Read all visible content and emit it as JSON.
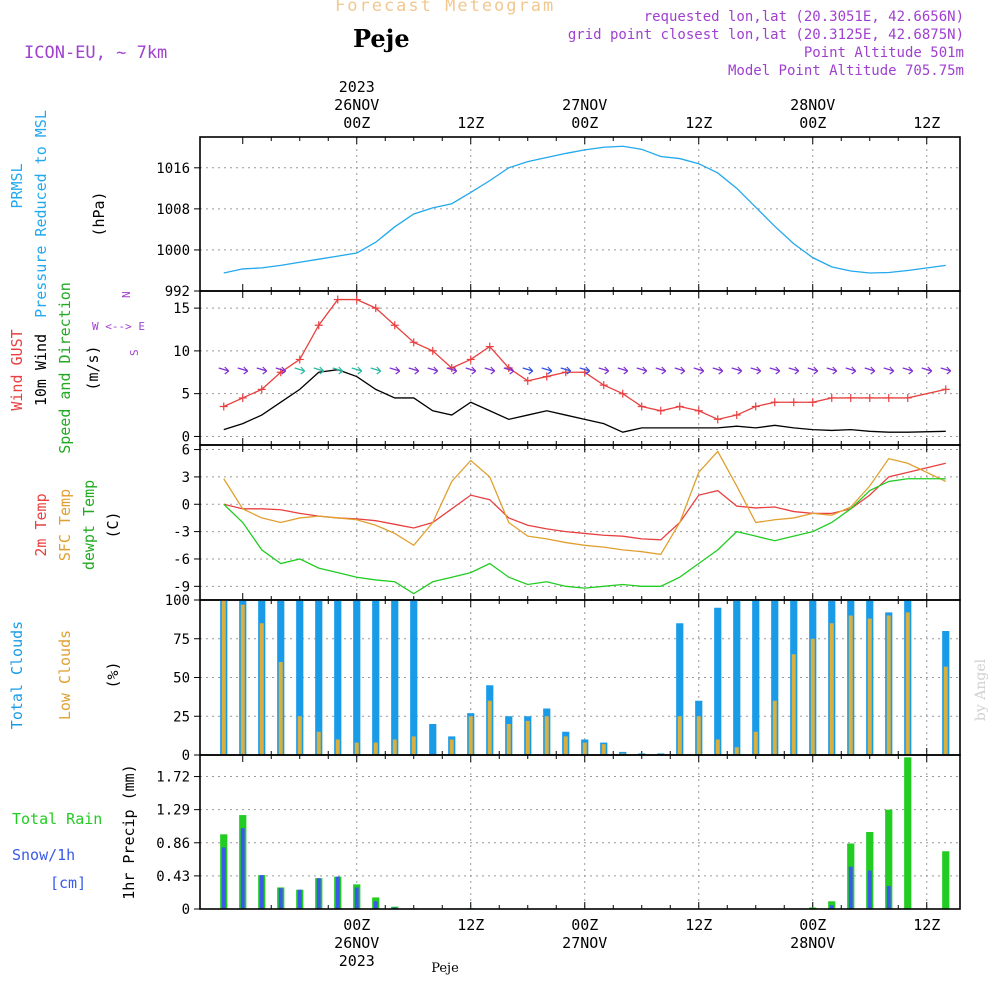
{
  "header": {
    "title": "Forecast Meteogram",
    "location": "Peje",
    "model": "ICON-EU, ~ 7km",
    "requested": "requested lon,lat (20.3051E, 42.6656N)",
    "gridpoint": "grid point closest lon,lat (20.3125E, 42.6875N)",
    "point_alt": "Point Altitude 501m",
    "model_alt": "Model Point Altitude 705.75m",
    "footer_location": "Peje",
    "watermark": "by Angel"
  },
  "colors": {
    "title": "#f0c890",
    "meta": "#a040d0",
    "pressure": "#22a8ee",
    "gust": "#e84040",
    "wind": "#000000",
    "t2m": "#e84040",
    "sfc": "#e0a030",
    "dew": "#22cc22",
    "cloud_total": "#1a9be8",
    "cloud_low": "#d8b040",
    "rain": "#22cc22",
    "snow": "#3a5ae8"
  },
  "chart_data": [
    {
      "id": "pressure",
      "type": "line",
      "ylabels": [
        "PRMSL",
        "Pressure Reduced to MSL",
        "(hPa)"
      ],
      "ylim": [
        992,
        1022
      ],
      "yticks": [
        992,
        1000,
        1008,
        1016
      ],
      "x_hours": [
        -14,
        -12,
        -10,
        -8,
        -6,
        -4,
        -2,
        0,
        2,
        4,
        6,
        8,
        10,
        12,
        14,
        16,
        18,
        20,
        22,
        24,
        26,
        28,
        30,
        32,
        34,
        36,
        38,
        40,
        42,
        44,
        46,
        48,
        50,
        52,
        54,
        56,
        58,
        62
      ],
      "series": [
        {
          "name": "PRMSL",
          "color": "#22a8ee",
          "values": [
            995.5,
            996.3,
            996.5,
            997.0,
            997.6,
            998.2,
            998.8,
            999.4,
            1001.5,
            1004.5,
            1007.0,
            1008.2,
            1009.0,
            1011.2,
            1013.5,
            1016.0,
            1017.2,
            1018.0,
            1018.8,
            1019.5,
            1020.0,
            1020.2,
            1019.6,
            1018.2,
            1017.8,
            1016.8,
            1015.0,
            1012.0,
            1008.3,
            1004.6,
            1001.2,
            998.5,
            996.7,
            995.9,
            995.5,
            995.6,
            996.0,
            997.0
          ]
        }
      ]
    },
    {
      "id": "wind",
      "type": "line",
      "ylabels": [
        "Wind GUST",
        "10m Wind",
        "Speed and Direction",
        "(m/s)"
      ],
      "compass": [
        "N",
        "W <--> E",
        "S"
      ],
      "ylim": [
        -1,
        17
      ],
      "yticks": [
        0,
        5,
        10,
        15
      ],
      "x_hours": [
        -14,
        -12,
        -10,
        -8,
        -6,
        -4,
        -2,
        0,
        2,
        4,
        6,
        8,
        10,
        12,
        14,
        16,
        18,
        20,
        22,
        24,
        26,
        28,
        30,
        32,
        34,
        36,
        38,
        40,
        42,
        44,
        46,
        48,
        50,
        52,
        54,
        56,
        58,
        62
      ],
      "series": [
        {
          "name": "Wind GUST",
          "color": "#e84040",
          "values": [
            3.5,
            4.5,
            5.5,
            7.5,
            9.0,
            13.0,
            16.0,
            16.0,
            15.0,
            13.0,
            11.0,
            10.0,
            8.0,
            9.0,
            10.5,
            8.0,
            6.5,
            7.0,
            7.5,
            7.5,
            6.0,
            5.0,
            3.5,
            3.0,
            3.5,
            3.0,
            2.0,
            2.5,
            3.5,
            4.0,
            4.0,
            4.0,
            4.5,
            4.5,
            4.5,
            4.5,
            4.5,
            5.5
          ]
        },
        {
          "name": "10m Wind",
          "color": "#000000",
          "values": [
            0.8,
            1.5,
            2.5,
            4.0,
            5.5,
            7.5,
            7.8,
            7.0,
            5.5,
            4.5,
            4.5,
            3.0,
            2.5,
            4.0,
            3.0,
            2.0,
            2.5,
            3.0,
            2.5,
            2.0,
            1.5,
            0.5,
            1.0,
            1.0,
            1.0,
            1.0,
            1.0,
            1.2,
            1.0,
            1.3,
            1.0,
            0.8,
            0.7,
            0.8,
            0.6,
            0.5,
            0.5,
            0.6
          ]
        }
      ]
    },
    {
      "id": "temperature",
      "type": "line",
      "ylabels": [
        "2m Temp",
        "SFC Temp",
        "dewpt Temp",
        "(C)"
      ],
      "ylim": [
        -10.5,
        6.5
      ],
      "yticks": [
        -9,
        -6,
        -3,
        0,
        3,
        6
      ],
      "x_hours": [
        -14,
        -12,
        -10,
        -8,
        -6,
        -4,
        -2,
        0,
        2,
        4,
        6,
        8,
        10,
        12,
        14,
        16,
        18,
        20,
        22,
        24,
        26,
        28,
        30,
        32,
        34,
        36,
        38,
        40,
        42,
        44,
        46,
        48,
        50,
        52,
        54,
        56,
        58,
        62
      ],
      "series": [
        {
          "name": "2m Temp",
          "color": "#e84040",
          "values": [
            0.0,
            -0.5,
            -0.5,
            -0.6,
            -1.0,
            -1.3,
            -1.5,
            -1.6,
            -1.8,
            -2.2,
            -2.6,
            -2.0,
            -0.5,
            1.0,
            0.5,
            -1.5,
            -2.3,
            -2.7,
            -3.0,
            -3.2,
            -3.4,
            -3.5,
            -3.8,
            -3.9,
            -2.0,
            1.0,
            1.5,
            -0.2,
            -0.4,
            -0.3,
            -0.8,
            -1.0,
            -1.0,
            -0.5,
            1.0,
            3.0,
            3.5,
            4.5
          ]
        },
        {
          "name": "SFC Temp",
          "color": "#e0a030",
          "values": [
            2.8,
            -0.5,
            -1.5,
            -2.0,
            -1.5,
            -1.3,
            -1.5,
            -1.7,
            -2.3,
            -3.2,
            -4.5,
            -2.0,
            2.5,
            4.8,
            3.0,
            -2.0,
            -3.5,
            -3.8,
            -4.2,
            -4.5,
            -4.7,
            -5.0,
            -5.2,
            -5.5,
            -2.0,
            3.5,
            5.8,
            2.0,
            -2.0,
            -1.7,
            -1.5,
            -1.0,
            -1.2,
            -0.3,
            2.0,
            5.0,
            4.5,
            2.5
          ]
        },
        {
          "name": "dewpt Temp",
          "color": "#22cc22",
          "values": [
            0.0,
            -2.0,
            -5.0,
            -6.5,
            -6.0,
            -7.0,
            -7.5,
            -8.0,
            -8.3,
            -8.5,
            -9.8,
            -8.5,
            -8.0,
            -7.5,
            -6.5,
            -8.0,
            -8.8,
            -8.5,
            -9.0,
            -9.2,
            -9.0,
            -8.8,
            -9.0,
            -9.0,
            -8.0,
            -6.5,
            -5.0,
            -3.0,
            -3.5,
            -4.0,
            -3.5,
            -3.0,
            -2.0,
            -0.5,
            1.5,
            2.5,
            2.8,
            2.8
          ]
        }
      ]
    },
    {
      "id": "clouds",
      "type": "bar",
      "ylabels": [
        "Total Clouds",
        "Low Clouds",
        "(%)"
      ],
      "ylim": [
        0,
        100
      ],
      "yticks": [
        0,
        25,
        50,
        75,
        100
      ],
      "x_hours": [
        -14,
        -12,
        -10,
        -8,
        -6,
        -4,
        -2,
        0,
        2,
        4,
        6,
        8,
        10,
        12,
        14,
        16,
        18,
        20,
        22,
        24,
        26,
        28,
        30,
        32,
        34,
        36,
        38,
        40,
        42,
        44,
        46,
        48,
        50,
        52,
        54,
        56,
        58,
        62
      ],
      "series": [
        {
          "name": "Total Clouds",
          "color": "#1a9be8",
          "values": [
            100,
            100,
            100,
            100,
            100,
            100,
            100,
            100,
            100,
            100,
            100,
            20,
            12,
            27,
            45,
            25,
            25,
            30,
            15,
            10,
            8,
            2,
            1,
            1,
            85,
            35,
            95,
            100,
            100,
            100,
            100,
            100,
            100,
            100,
            100,
            92,
            100,
            80
          ]
        },
        {
          "name": "Low Clouds",
          "color": "#d8b040",
          "values": [
            100,
            97,
            85,
            60,
            25,
            15,
            10,
            8,
            8,
            10,
            12,
            0,
            10,
            25,
            35,
            20,
            22,
            25,
            12,
            8,
            7,
            1,
            0,
            0,
            25,
            25,
            10,
            5,
            15,
            35,
            65,
            75,
            85,
            90,
            88,
            90,
            92,
            57
          ]
        }
      ]
    },
    {
      "id": "precip",
      "type": "bar",
      "ylabels": [
        "Total Rain",
        "Snow/1h",
        "[cm]",
        "1hr Precip (mm)"
      ],
      "ylim": [
        0,
        2.0
      ],
      "yticks": [
        0,
        0.43,
        0.86,
        1.29,
        1.72
      ],
      "x_hours": [
        -14,
        -12,
        -10,
        -8,
        -6,
        -4,
        -2,
        0,
        2,
        4,
        6,
        8,
        10,
        12,
        14,
        16,
        18,
        20,
        22,
        24,
        26,
        28,
        30,
        32,
        34,
        36,
        38,
        40,
        42,
        44,
        46,
        48,
        50,
        52,
        54,
        56,
        58,
        62
      ],
      "series": [
        {
          "name": "Total Rain",
          "color": "#22cc22",
          "values": [
            0.97,
            1.22,
            0.44,
            0.28,
            0.25,
            0.4,
            0.42,
            0.32,
            0.15,
            0.03,
            0.01,
            0,
            0,
            0.01,
            0,
            0,
            0,
            0,
            0,
            0,
            0,
            0,
            0,
            0,
            0,
            0,
            0,
            0,
            0,
            0,
            0,
            0.02,
            0.1,
            0.85,
            1.0,
            1.29,
            1.97,
            0.75
          ]
        },
        {
          "name": "Snow/1h",
          "color": "#3a5ae8",
          "values": [
            0.8,
            1.05,
            0.44,
            0.27,
            0.25,
            0.4,
            0.42,
            0.28,
            0.1,
            0.02,
            0,
            0,
            0,
            0,
            0,
            0,
            0,
            0,
            0,
            0,
            0,
            0,
            0,
            0,
            0,
            0,
            0,
            0,
            0,
            0,
            0,
            0.01,
            0.05,
            0.55,
            0.5,
            0.3,
            0,
            0
          ]
        }
      ]
    }
  ],
  "time_axis": {
    "top_year": "2023",
    "ticks": [
      {
        "h": 0,
        "label": "00Z",
        "date": "26NOV"
      },
      {
        "h": 12,
        "label": "12Z",
        "date": ""
      },
      {
        "h": 24,
        "label": "00Z",
        "date": "27NOV"
      },
      {
        "h": 36,
        "label": "12Z",
        "date": ""
      },
      {
        "h": 48,
        "label": "00Z",
        "date": "28NOV"
      },
      {
        "h": 60,
        "label": "12Z",
        "date": ""
      }
    ],
    "bottom_year": "2023"
  }
}
